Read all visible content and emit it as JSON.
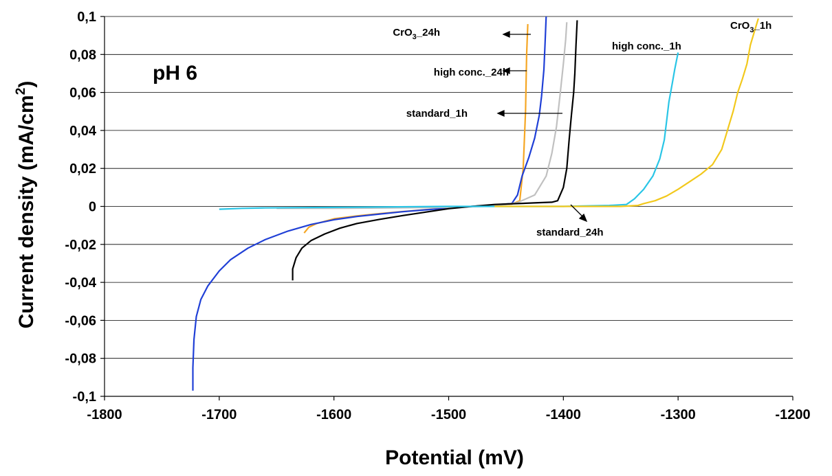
{
  "chart_data": {
    "type": "line",
    "xlabel": "Potential (mV)",
    "ylabel": "Current density (mA/cm²)",
    "xlim": [
      -1800,
      -1200
    ],
    "ylim": [
      -0.1,
      0.1
    ],
    "x_ticks": [
      -1800,
      -1700,
      -1600,
      -1500,
      -1400,
      -1300,
      -1200
    ],
    "x_tick_labels": [
      "-1800",
      "-1700",
      "-1600",
      "-1500",
      "-1400",
      "-1300",
      "-1200"
    ],
    "y_ticks": [
      0.1,
      0.08,
      0.06,
      0.04,
      0.02,
      0,
      -0.02,
      -0.04,
      -0.06,
      -0.08,
      -0.1
    ],
    "y_tick_labels": [
      "0,1",
      "0,08",
      "0,06",
      "0,04",
      "0,02",
      "0",
      "-0,02",
      "-0,04",
      "-0,06",
      "-0,08",
      "-0,1"
    ],
    "grid": "horizontal",
    "panel_label": "pH 6",
    "annotations": {
      "cro3_24h": "CrO3_24h",
      "high_conc_24h": "high conc._24h",
      "standard_1h": "standard_1h",
      "high_conc_1h": "high conc._1h",
      "cro3_1h": "CrO3_1h",
      "standard_24h": "standard_24h"
    },
    "series": [
      {
        "key": "cro3_24h",
        "color": "#f5a623",
        "points": [
          [
            -1626,
            -0.014
          ],
          [
            -1622,
            -0.011
          ],
          [
            -1615,
            -0.009
          ],
          [
            -1600,
            -0.0065
          ],
          [
            -1580,
            -0.005
          ],
          [
            -1560,
            -0.0038
          ],
          [
            -1540,
            -0.0027
          ],
          [
            -1520,
            -0.0017
          ],
          [
            -1500,
            -0.0008
          ],
          [
            -1480,
            0
          ],
          [
            -1460,
            0.0007
          ],
          [
            -1445,
            0.0012
          ],
          [
            -1438,
            0.003
          ],
          [
            -1435,
            0.02
          ],
          [
            -1433,
            0.05
          ],
          [
            -1432,
            0.08
          ],
          [
            -1431,
            0.096
          ]
        ]
      },
      {
        "key": "high_conc_24h",
        "color": "#1f3fd6",
        "points": [
          [
            -1723,
            -0.097
          ],
          [
            -1723,
            -0.085
          ],
          [
            -1722,
            -0.07
          ],
          [
            -1720,
            -0.058
          ],
          [
            -1716,
            -0.049
          ],
          [
            -1710,
            -0.042
          ],
          [
            -1700,
            -0.034
          ],
          [
            -1690,
            -0.028
          ],
          [
            -1675,
            -0.022
          ],
          [
            -1660,
            -0.0175
          ],
          [
            -1640,
            -0.013
          ],
          [
            -1620,
            -0.0095
          ],
          [
            -1600,
            -0.007
          ],
          [
            -1580,
            -0.0053
          ],
          [
            -1560,
            -0.004
          ],
          [
            -1540,
            -0.0028
          ],
          [
            -1520,
            -0.0018
          ],
          [
            -1500,
            -0.0009
          ],
          [
            -1480,
            0
          ],
          [
            -1460,
            0.0008
          ],
          [
            -1445,
            0.0015
          ],
          [
            -1440,
            0.006
          ],
          [
            -1436,
            0.016
          ],
          [
            -1430,
            0.026
          ],
          [
            -1425,
            0.036
          ],
          [
            -1421,
            0.048
          ],
          [
            -1419,
            0.058
          ],
          [
            -1417,
            0.072
          ],
          [
            -1416,
            0.085
          ],
          [
            -1415,
            0.1
          ]
        ]
      },
      {
        "key": "standard_1h",
        "color": "#c0c0c0",
        "points": [
          [
            -1650,
            -0.001
          ],
          [
            -1600,
            -0.001
          ],
          [
            -1550,
            -0.0008
          ],
          [
            -1500,
            -0.0005
          ],
          [
            -1470,
            0
          ],
          [
            -1450,
            0.001
          ],
          [
            -1440,
            0.002
          ],
          [
            -1425,
            0.006
          ],
          [
            -1415,
            0.016
          ],
          [
            -1410,
            0.028
          ],
          [
            -1406,
            0.042
          ],
          [
            -1403,
            0.058
          ],
          [
            -1400,
            0.075
          ],
          [
            -1398,
            0.088
          ],
          [
            -1397,
            0.097
          ]
        ]
      },
      {
        "key": "standard_24h",
        "color": "#000000",
        "points": [
          [
            -1636,
            -0.039
          ],
          [
            -1636,
            -0.033
          ],
          [
            -1633,
            -0.027
          ],
          [
            -1628,
            -0.022
          ],
          [
            -1620,
            -0.018
          ],
          [
            -1608,
            -0.0145
          ],
          [
            -1595,
            -0.0115
          ],
          [
            -1580,
            -0.009
          ],
          [
            -1560,
            -0.0068
          ],
          [
            -1540,
            -0.0048
          ],
          [
            -1520,
            -0.003
          ],
          [
            -1500,
            -0.0012
          ],
          [
            -1480,
            0
          ],
          [
            -1460,
            0.001
          ],
          [
            -1440,
            0.0015
          ],
          [
            -1420,
            0.002
          ],
          [
            -1410,
            0.0022
          ],
          [
            -1405,
            0.003
          ],
          [
            -1400,
            0.01
          ],
          [
            -1397,
            0.02
          ],
          [
            -1395,
            0.035
          ],
          [
            -1393,
            0.048
          ],
          [
            -1391,
            0.06
          ],
          [
            -1390,
            0.07
          ],
          [
            -1389,
            0.085
          ],
          [
            -1388,
            0.098
          ]
        ]
      },
      {
        "key": "high_conc_1h",
        "color": "#29c5e6",
        "points": [
          [
            -1700,
            -0.0015
          ],
          [
            -1680,
            -0.001
          ],
          [
            -1660,
            -0.0008
          ],
          [
            -1600,
            -0.0005
          ],
          [
            -1500,
            0
          ],
          [
            -1400,
            0
          ],
          [
            -1360,
            0.0005
          ],
          [
            -1345,
            0.001
          ],
          [
            -1338,
            0.004
          ],
          [
            -1330,
            0.009
          ],
          [
            -1322,
            0.016
          ],
          [
            -1316,
            0.025
          ],
          [
            -1312,
            0.035
          ],
          [
            -1310,
            0.045
          ],
          [
            -1308,
            0.055
          ],
          [
            -1305,
            0.065
          ],
          [
            -1303,
            0.072
          ],
          [
            -1301,
            0.078
          ],
          [
            -1300,
            0.081
          ]
        ]
      },
      {
        "key": "cro3_1h",
        "color": "#f2c81c",
        "points": [
          [
            -1460,
            0
          ],
          [
            -1400,
            0
          ],
          [
            -1350,
            0
          ],
          [
            -1335,
            0.0005
          ],
          [
            -1330,
            0.0015
          ],
          [
            -1320,
            0.003
          ],
          [
            -1310,
            0.0055
          ],
          [
            -1300,
            0.009
          ],
          [
            -1290,
            0.013
          ],
          [
            -1280,
            0.017
          ],
          [
            -1270,
            0.022
          ],
          [
            -1262,
            0.03
          ],
          [
            -1257,
            0.04
          ],
          [
            -1252,
            0.05
          ],
          [
            -1248,
            0.06
          ],
          [
            -1244,
            0.067
          ],
          [
            -1240,
            0.075
          ],
          [
            -1237,
            0.085
          ],
          [
            -1233,
            0.093
          ],
          [
            -1230,
            0.099
          ]
        ]
      }
    ]
  }
}
